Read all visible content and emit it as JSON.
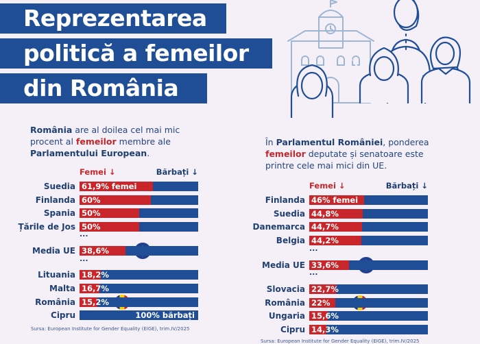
{
  "title": {
    "lines": [
      "Reprezentarea",
      "politică a femeilor",
      "din România"
    ]
  },
  "colors": {
    "women": "#c8262a",
    "men": "#1f4e96",
    "background": "#f5eff7"
  },
  "chart_data": [
    {
      "type": "bar",
      "stacked": true,
      "orientation": "horizontal",
      "intro": {
        "p1": "România",
        "p2": " are al doilea cel mai mic procent al ",
        "p3": "femeilor",
        "p4": " membre ale ",
        "p5": "Parlamentului European",
        "p6": "."
      },
      "legend": {
        "women": "Femei ↓",
        "men": "Bărbați ↓"
      },
      "categories": [
        "Suedia",
        "Finlanda",
        "Spania",
        "Țările de Jos",
        "Media UE",
        "Lituania",
        "Malta",
        "România",
        "Cipru"
      ],
      "series": [
        {
          "name": "Femei",
          "values": [
            61.9,
            60,
            50,
            50,
            38.6,
            18.2,
            16.7,
            15.2,
            0
          ]
        },
        {
          "name": "Bărbați",
          "values": [
            38.1,
            40,
            50,
            50,
            61.4,
            81.8,
            83.3,
            84.8,
            100
          ]
        }
      ],
      "data_labels": [
        "61,9% femei",
        "60%",
        "50%",
        "50%",
        "38,6%",
        "18,2%",
        "16,7%",
        "15,2%",
        "100% bărbați"
      ],
      "ellipsis_after": [
        "Țările de Jos",
        "Media UE"
      ],
      "ellipsis": "...",
      "markers": {
        "Media UE": "eu-flag",
        "România": "romania-flag"
      },
      "xlim": [
        0,
        100
      ],
      "source": "Sursa: European Institute for Gender Equality (EIGE), trim.IV/2025"
    },
    {
      "type": "bar",
      "stacked": true,
      "orientation": "horizontal",
      "intro": {
        "p1": "În ",
        "p2": "Parlamentul României",
        "p3": ", ponderea ",
        "p4": "femeilor",
        "p5": " deputate și senatoare este printre cele mai mici din UE."
      },
      "legend": {
        "women": "Femei ↓",
        "men": "Bărbați ↓"
      },
      "categories": [
        "Finlanda",
        "Suedia",
        "Danemarca",
        "Belgia",
        "Media UE",
        "Slovacia",
        "România",
        "Ungaria",
        "Cipru"
      ],
      "series": [
        {
          "name": "Femei",
          "values": [
            46,
            44.8,
            44.7,
            44.2,
            33.6,
            22.7,
            22,
            15.6,
            14.3
          ]
        },
        {
          "name": "Bărbați",
          "values": [
            54,
            55.2,
            55.3,
            55.8,
            66.4,
            77.3,
            78,
            84.4,
            85.7
          ]
        }
      ],
      "data_labels": [
        "46% femei",
        "44,8%",
        "44,7%",
        "44,2%",
        "33,6%",
        "22,7%",
        "22%",
        "15,6%",
        "14,3%"
      ],
      "ellipsis_after": [
        "Belgia",
        "Media UE"
      ],
      "ellipsis": "...",
      "markers": {
        "Media UE": "eu-flag",
        "România": "romania-flag"
      },
      "xlim": [
        0,
        100
      ],
      "source": "Sursa: European Institute for Gender Equality (EIGE), trim.IV/2025"
    }
  ]
}
